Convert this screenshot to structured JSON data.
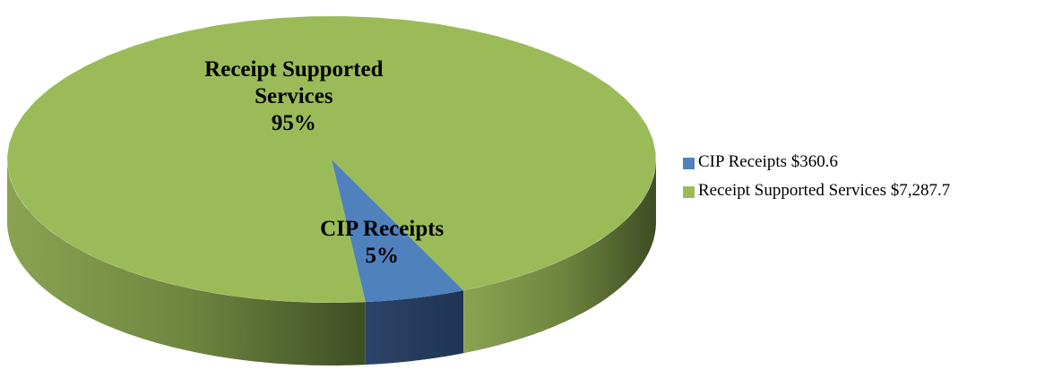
{
  "chart_data": {
    "type": "pie3d",
    "categories": [
      "CIP Receipts",
      "Receipt Supported Services"
    ],
    "values": [
      5,
      95
    ],
    "value_labels": [
      "5%",
      "95%"
    ],
    "colors": [
      "#4f81bd",
      "#9bbb59"
    ],
    "legend": [
      "CIP Receipts $360.6",
      "Receipt Supported Services $7,287.7"
    ],
    "legend_position": "right"
  }
}
